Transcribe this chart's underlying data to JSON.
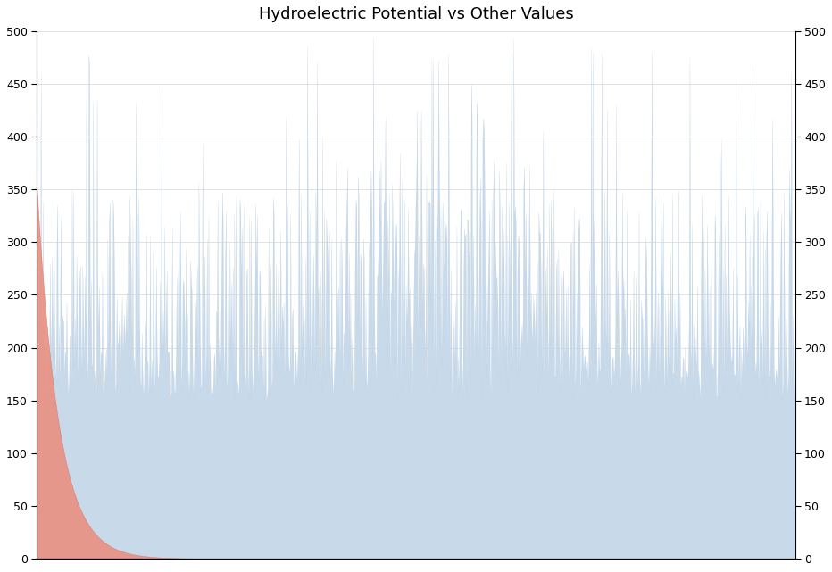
{
  "title": "Hydroelectric Potential vs Other Values",
  "ylim": [
    0,
    500
  ],
  "yticks": [
    0,
    50,
    100,
    150,
    200,
    250,
    300,
    350,
    400,
    450,
    500
  ],
  "n_points": 1000,
  "blue_color": "#c8d9ea",
  "blue_edge_color": "#b0c8de",
  "red_color": "#e89080",
  "red_edge_color": "#d07060",
  "background_color": "#ffffff",
  "grid_color": "#cccccc",
  "title_fontsize": 13
}
